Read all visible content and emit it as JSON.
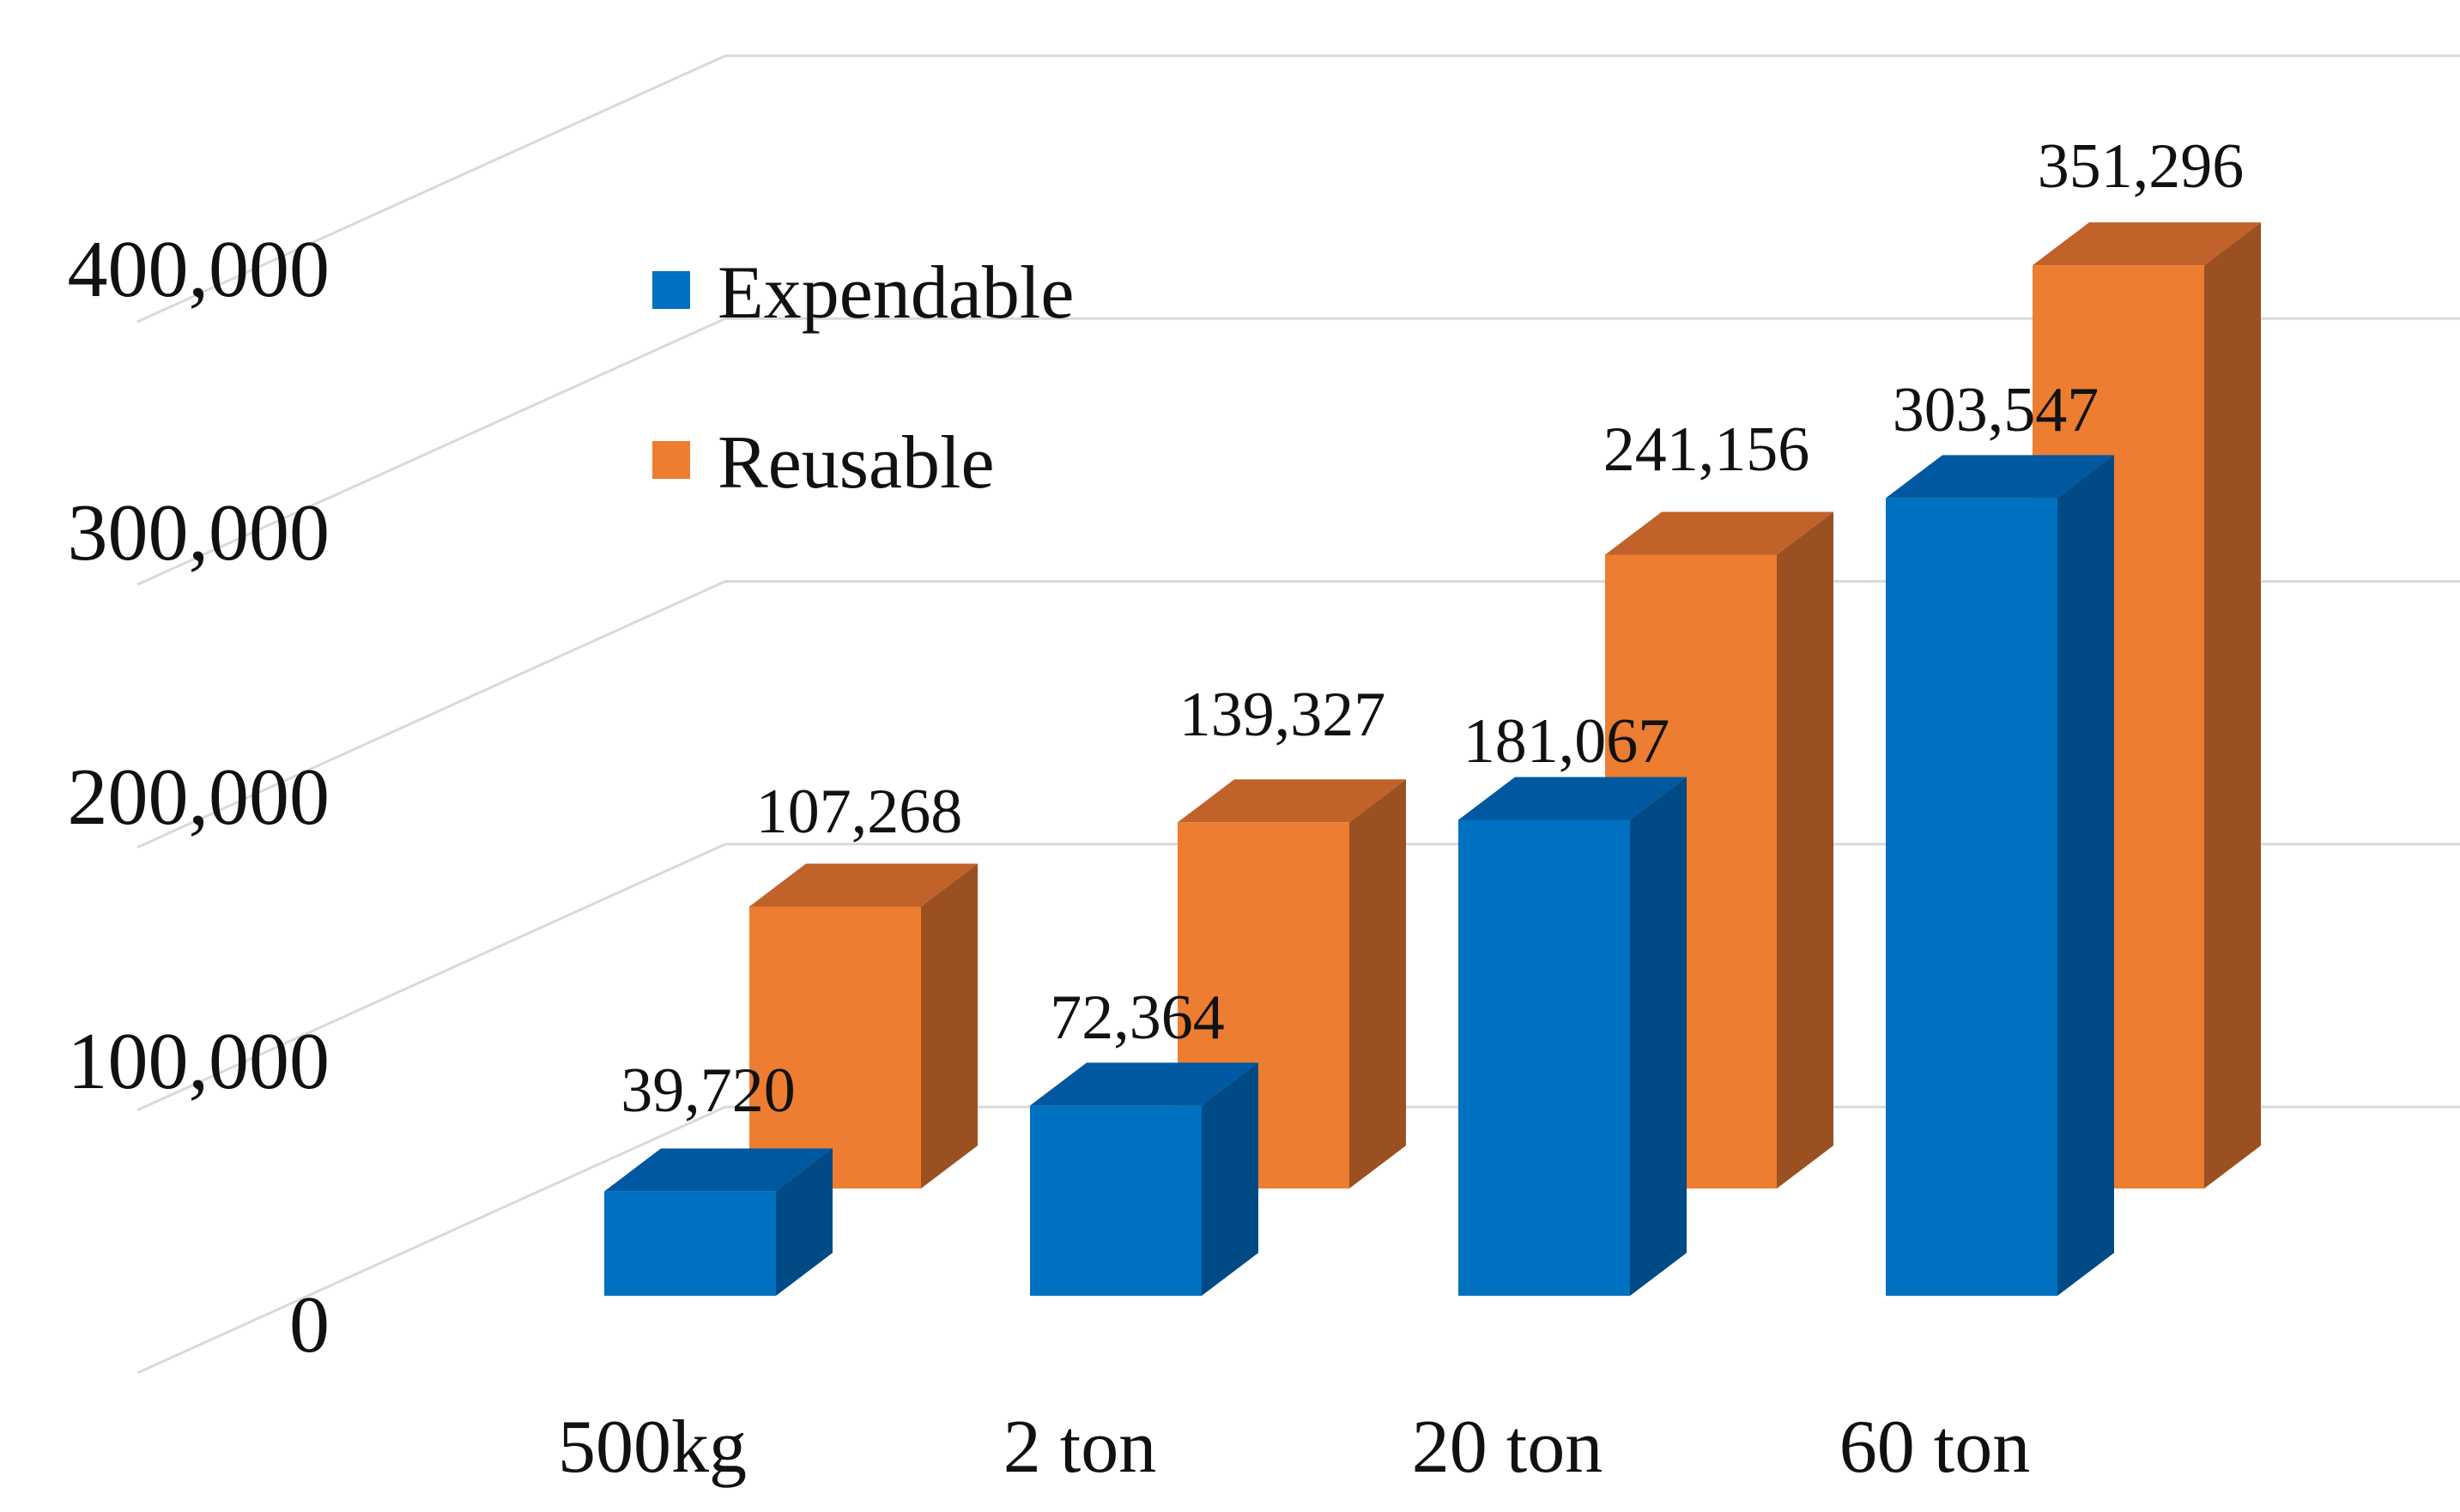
{
  "chart_data": {
    "type": "bar",
    "style": "3d-clustered-column",
    "title": "",
    "xlabel": "",
    "ylabel": "",
    "categories": [
      "500kg",
      "2 ton",
      "20 ton",
      "60 ton"
    ],
    "series": [
      {
        "name": "Expendable",
        "values": [
          39720,
          72364,
          181067,
          303547
        ],
        "labels": [
          "39,720",
          "72,364",
          "181,067",
          "303,547"
        ],
        "color": "#0070C0",
        "top_color": "#0059A0",
        "side_color": "#004A85"
      },
      {
        "name": "Reusable",
        "values": [
          107268,
          139327,
          241156,
          351296
        ],
        "labels": [
          "107,268",
          "139,327",
          "241,156",
          "351,296"
        ],
        "color": "#ED7D31",
        "top_color": "#C0622A",
        "side_color": "#9A5020"
      }
    ],
    "ylim": [
      0,
      400000
    ],
    "yticks": [
      0,
      100000,
      200000,
      300000,
      400000
    ],
    "ytick_labels": [
      "0",
      "100,000",
      "200,000",
      "300,000",
      "400,000"
    ],
    "grid": true,
    "legend": {
      "position": "top-left",
      "entries": [
        "Expendable",
        "Reusable"
      ]
    }
  }
}
